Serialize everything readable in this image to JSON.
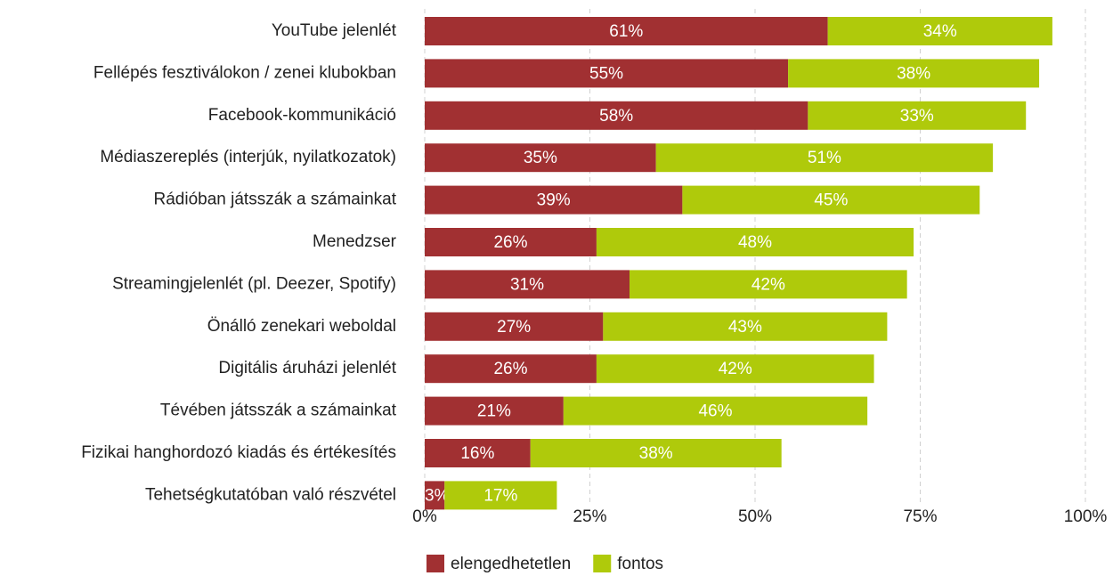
{
  "chart_data": {
    "type": "bar_stacked_horizontal",
    "categories": [
      "YouTube jelenlét",
      "Fellépés fesztiválokon / zenei klubokban",
      "Facebook-kommunikáció",
      "Médiaszereplés (interjúk, nyilatkozatok)",
      "Rádióban játsszák a számainkat",
      "Menedzser",
      "Streamingjelenlét (pl. Deezer, Spotify)",
      "Önálló zenekari weboldal",
      "Digitális áruházi jelenlét",
      "Tévében játsszák a számainkat",
      "Fizikai hanghordozó kiadás és értékesítés",
      "Tehetségkutatóban való részvétel"
    ],
    "series": [
      {
        "name": "elengedhetetlen",
        "color": "#a13032",
        "values": [
          61,
          55,
          58,
          35,
          39,
          26,
          31,
          27,
          26,
          21,
          16,
          3
        ],
        "value_labels": [
          "61%",
          "55%",
          "58%",
          "35%",
          "39%",
          "26%",
          "31%",
          "27%",
          "26%",
          "21%",
          "16%",
          "3%"
        ]
      },
      {
        "name": "fontos",
        "color": "#afca0b",
        "values": [
          34,
          38,
          33,
          51,
          45,
          48,
          42,
          43,
          42,
          46,
          38,
          17
        ],
        "value_labels": [
          "34%",
          "38%",
          "33%",
          "51%",
          "45%",
          "48%",
          "42%",
          "43%",
          "42%",
          "46%",
          "38%",
          "17%"
        ]
      }
    ],
    "xlim": [
      0,
      100
    ],
    "xticks": [
      {
        "value": 0,
        "label": "0%"
      },
      {
        "value": 25,
        "label": "25%"
      },
      {
        "value": 50,
        "label": "50%"
      },
      {
        "value": 75,
        "label": "75%"
      },
      {
        "value": 100,
        "label": "100%"
      }
    ],
    "grid": true,
    "legend": "bottom"
  }
}
